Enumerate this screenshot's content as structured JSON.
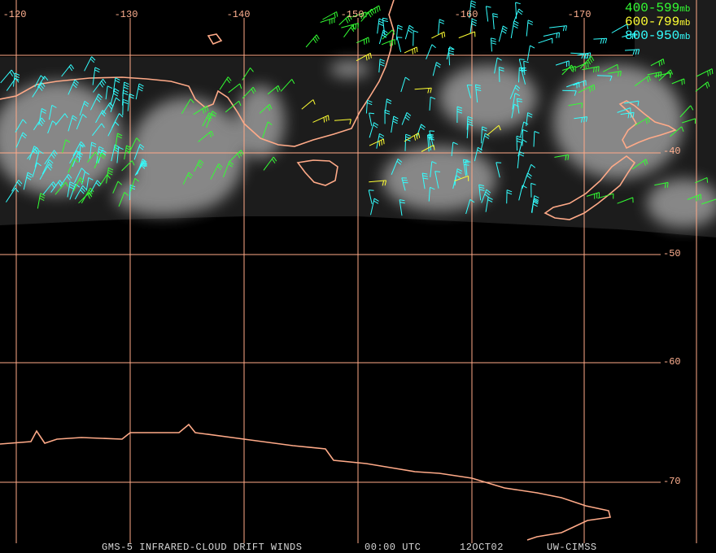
{
  "map": {
    "lon_labels": [
      "-120",
      "-130",
      "-140",
      "-150",
      "-160",
      "-170"
    ],
    "lat_labels": [
      "-40",
      "-50",
      "-60",
      "-70"
    ],
    "legend": [
      {
        "range": "400-599",
        "unit": "mb",
        "color": "#33ff33"
      },
      {
        "range": "600-799",
        "unit": "mb",
        "color": "#ffff33"
      },
      {
        "range": "800-950",
        "unit": "mb",
        "color": "#33ffff"
      }
    ],
    "footer": [
      "GMS-5 INFRARED-CLOUD DRIFT WINDS",
      "00:00 UTC",
      "12OCT02",
      "UW-CIMSS"
    ]
  }
}
